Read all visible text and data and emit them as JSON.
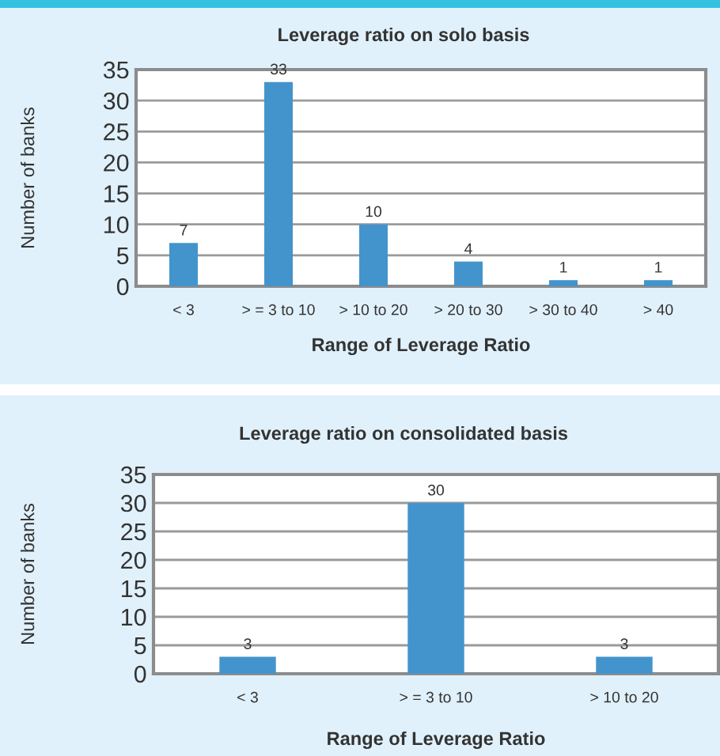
{
  "chart_data": [
    {
      "type": "bar",
      "title": "Leverage ratio on solo basis",
      "xlabel": "Range of Leverage Ratio",
      "ylabel": "Number of banks",
      "categories": [
        "< 3",
        "> = 3 to 10",
        "> 10 to 20",
        "> 20 to 30",
        "> 30 to 40",
        "> 40"
      ],
      "values": [
        7,
        33,
        10,
        4,
        1,
        1
      ],
      "color": "#4394cc",
      "ylim": [
        0,
        35
      ],
      "yticks": [
        0,
        5,
        10,
        15,
        20,
        25,
        30,
        35
      ],
      "grid": "y",
      "data_labels": true
    },
    {
      "type": "bar",
      "title": "Leverage ratio on consolidated basis",
      "xlabel": "Range of Leverage Ratio",
      "ylabel": "Number of banks",
      "categories": [
        "< 3",
        "> = 3 to 10",
        "> 10 to 20"
      ],
      "values": [
        3,
        30,
        3
      ],
      "color": "#4394cc",
      "ylim": [
        0,
        35
      ],
      "yticks": [
        0,
        5,
        10,
        15,
        20,
        25,
        30,
        35
      ],
      "grid": "y",
      "data_labels": true
    }
  ]
}
